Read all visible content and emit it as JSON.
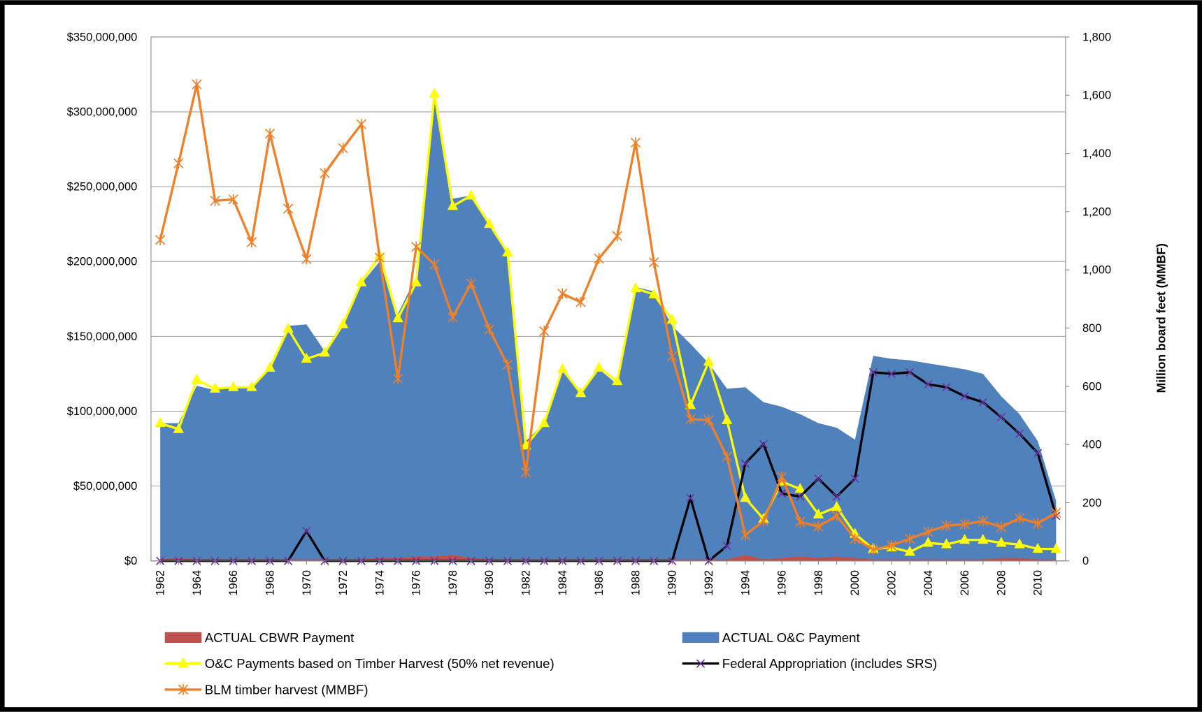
{
  "chart_data": {
    "type": "combo",
    "y2label": "Million board feet (MMBF)",
    "categories": [
      1962,
      null,
      1964,
      null,
      1966,
      null,
      1968,
      null,
      1970,
      null,
      1972,
      null,
      1974,
      null,
      1976,
      null,
      1978,
      null,
      1980,
      null,
      1982,
      null,
      1984,
      null,
      1986,
      null,
      1988,
      null,
      1990,
      null,
      1992,
      null,
      1994,
      null,
      1996,
      null,
      1998,
      null,
      2000,
      null,
      2002,
      null,
      2004,
      null,
      2006,
      null,
      2008,
      null,
      2010,
      null
    ],
    "ylim": [
      0,
      350000000
    ],
    "yticks": [
      {
        "value": 0,
        "label": "$0"
      },
      {
        "value": 50000000,
        "label": "$50,000,000"
      },
      {
        "value": 100000000,
        "label": "$100,000,000"
      },
      {
        "value": 150000000,
        "label": "$150,000,000"
      },
      {
        "value": 200000000,
        "label": "$200,000,000"
      },
      {
        "value": 250000000,
        "label": "$250,000,000"
      },
      {
        "value": 300000000,
        "label": "$300,000,000"
      },
      {
        "value": 350000000,
        "label": "$350,000,000"
      }
    ],
    "y2lim": [
      0,
      1800
    ],
    "y2ticks": [
      0,
      200,
      400,
      600,
      800,
      {
        "value": 1000,
        "label": "1,000"
      },
      {
        "value": 1200,
        "label": "1,200"
      },
      {
        "value": 1400,
        "label": "1,400"
      },
      {
        "value": 1600,
        "label": "1,600"
      },
      {
        "value": 1800,
        "label": "1,800"
      }
    ],
    "grid": true,
    "legend": "bottom",
    "series": [
      {
        "name": "ACTUAL CBWR Payment",
        "type": "area",
        "color": "#c0504d",
        "values": [
          1000000,
          2000000,
          1000000,
          1000000,
          1000000,
          1000000,
          1000000,
          1000000,
          1000000,
          1000000,
          1000000,
          1000000,
          2000000,
          2000000,
          3000000,
          3000000,
          4000000,
          2000000,
          1000000,
          1000000,
          1000000,
          1000000,
          1000000,
          1000000,
          1000000,
          1000000,
          1000000,
          1000000,
          1000000,
          1000000,
          1000000,
          1000000,
          4000000,
          1000000,
          2000000,
          3000000,
          2000000,
          3000000,
          2000000,
          1000000,
          1000000,
          1000000,
          1000000,
          1000000,
          1000000,
          1000000,
          2000000,
          2000000,
          1000000,
          1000000
        ]
      },
      {
        "name": "ACTUAL O&C Payment",
        "type": "area",
        "color": "#4f81bd",
        "values": [
          92000000,
          92000000,
          117000000,
          114000000,
          116000000,
          116000000,
          130000000,
          157000000,
          158000000,
          140000000,
          160000000,
          185000000,
          200000000,
          165000000,
          190000000,
          310000000,
          242000000,
          244000000,
          224000000,
          206000000,
          80000000,
          92000000,
          128000000,
          112000000,
          128000000,
          118000000,
          183000000,
          180000000,
          157000000,
          145000000,
          132000000,
          115000000,
          116000000,
          106000000,
          103000000,
          98000000,
          92000000,
          89000000,
          81000000,
          137000000,
          135000000,
          134000000,
          132000000,
          130000000,
          128000000,
          125000000,
          110000000,
          98000000,
          80000000,
          40000000
        ]
      },
      {
        "name": "O&C Payments based on Timber Harvest (50% net revenue)",
        "type": "line",
        "color": "#ffff00",
        "marker": "triangle",
        "values": [
          92000000,
          88000000,
          121000000,
          115000000,
          116000000,
          116000000,
          129000000,
          155000000,
          135000000,
          139000000,
          158000000,
          186000000,
          204000000,
          162000000,
          186000000,
          312000000,
          237000000,
          244000000,
          225000000,
          206000000,
          77000000,
          92000000,
          128000000,
          112000000,
          129000000,
          120000000,
          182000000,
          178000000,
          161000000,
          104000000,
          133000000,
          94000000,
          42000000,
          28000000,
          53000000,
          48000000,
          31000000,
          36000000,
          18000000,
          8000000,
          9000000,
          6000000,
          12000000,
          11000000,
          14000000,
          14000000,
          12000000,
          11000000,
          8000000,
          8000000
        ]
      },
      {
        "name": "Federal Appropriation (includes SRS)",
        "type": "line",
        "color": "#000000",
        "marker": "x",
        "marker_color": "#7030a0",
        "values": [
          0,
          0,
          0,
          0,
          0,
          0,
          0,
          0,
          20000000,
          0,
          0,
          0,
          0,
          0,
          0,
          0,
          0,
          0,
          0,
          0,
          0,
          0,
          0,
          0,
          0,
          0,
          0,
          0,
          0,
          42000000,
          0,
          10000000,
          65000000,
          78000000,
          45000000,
          43000000,
          55000000,
          43000000,
          55000000,
          126000000,
          125000000,
          126000000,
          118000000,
          116000000,
          110000000,
          106000000,
          96000000,
          85000000,
          72000000,
          30000000
        ]
      },
      {
        "name": "BLM timber harvest (MMBF)",
        "type": "line",
        "axis": "y2",
        "color": "#f07f28",
        "marker": "star",
        "values": [
          1103,
          1366,
          1637,
          1237,
          1242,
          1095,
          1468,
          1210,
          1037,
          1332,
          1418,
          1500,
          1042,
          626,
          1079,
          1018,
          837,
          953,
          795,
          674,
          305,
          789,
          918,
          889,
          1039,
          1116,
          1437,
          1026,
          703,
          487,
          484,
          358,
          89,
          137,
          289,
          134,
          118,
          155,
          76,
          39,
          53,
          76,
          100,
          121,
          126,
          137,
          116,
          147,
          129,
          166
        ]
      }
    ]
  }
}
